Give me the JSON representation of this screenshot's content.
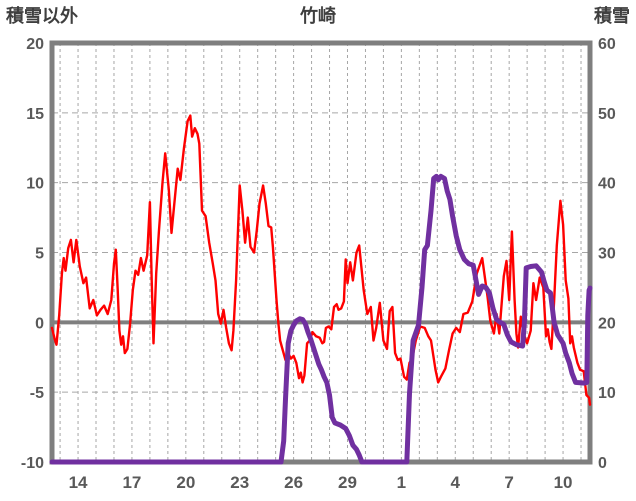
{
  "chart": {
    "title": "竹崎",
    "left_axis_title": "積雪以外",
    "right_axis_title": "積雪"
  },
  "chart_data": {
    "type": "line",
    "title": "竹崎",
    "grid": true,
    "legend": "none",
    "left_axis": {
      "label": "積雪以外",
      "ticks": [
        20,
        15,
        10,
        5,
        0,
        -5,
        -10
      ],
      "range": [
        -10,
        20
      ]
    },
    "right_axis": {
      "label": "積雪",
      "ticks": [
        60,
        50,
        40,
        30,
        20,
        10,
        0
      ],
      "range": [
        0,
        60
      ]
    },
    "x_axis": {
      "note": "day index: 14-31 = Dec 14-31, 32-41 = Jan 1-10",
      "range_days": [
        12.55,
        42.5
      ],
      "tick_days": [
        14,
        17,
        20,
        23,
        26,
        29,
        32,
        35,
        38,
        41
      ],
      "tick_labels": [
        "14",
        "17",
        "20",
        "23",
        "26",
        "29",
        "1",
        "4",
        "7",
        "10"
      ],
      "day_gridlines": true
    },
    "colors": {
      "temperature": "#FF0000",
      "snow": "#7030A0",
      "axis_frame": "#7f7f7f",
      "zero_line": "#7f7f7f",
      "grid": "#a6a6a6"
    },
    "series": [
      {
        "name": "temperature-non-snow",
        "axis": "left",
        "color": "#FF0000",
        "width": 2.4,
        "points": [
          [
            12.55,
            -0.4
          ],
          [
            12.7,
            -1.2
          ],
          [
            12.8,
            -1.6
          ],
          [
            12.95,
            0.5
          ],
          [
            13.1,
            3.5
          ],
          [
            13.2,
            4.6
          ],
          [
            13.3,
            3.7
          ],
          [
            13.45,
            5.3
          ],
          [
            13.6,
            5.9
          ],
          [
            13.75,
            4.3
          ],
          [
            13.9,
            5.9
          ],
          [
            14.1,
            4.0
          ],
          [
            14.3,
            2.8
          ],
          [
            14.45,
            3.2
          ],
          [
            14.65,
            1.0
          ],
          [
            14.85,
            1.6
          ],
          [
            15.05,
            0.5
          ],
          [
            15.25,
            0.9
          ],
          [
            15.45,
            1.2
          ],
          [
            15.65,
            0.6
          ],
          [
            15.85,
            1.6
          ],
          [
            16.0,
            4.2
          ],
          [
            16.1,
            5.2
          ],
          [
            16.2,
            2.5
          ],
          [
            16.3,
            -0.6
          ],
          [
            16.4,
            -1.6
          ],
          [
            16.5,
            -1.0
          ],
          [
            16.6,
            -2.2
          ],
          [
            16.75,
            -1.9
          ],
          [
            16.9,
            -0.1
          ],
          [
            17.05,
            2.3
          ],
          [
            17.2,
            3.7
          ],
          [
            17.35,
            3.4
          ],
          [
            17.5,
            4.6
          ],
          [
            17.65,
            3.7
          ],
          [
            17.85,
            4.8
          ],
          [
            18.0,
            8.6
          ],
          [
            18.1,
            3.0
          ],
          [
            18.2,
            -1.5
          ],
          [
            18.35,
            3.5
          ],
          [
            18.5,
            6.5
          ],
          [
            18.7,
            10.0
          ],
          [
            18.85,
            12.1
          ],
          [
            19.05,
            9.5
          ],
          [
            19.2,
            6.4
          ],
          [
            19.4,
            9.0
          ],
          [
            19.55,
            11.0
          ],
          [
            19.7,
            10.2
          ],
          [
            19.9,
            12.5
          ],
          [
            20.1,
            14.4
          ],
          [
            20.25,
            14.8
          ],
          [
            20.35,
            13.3
          ],
          [
            20.5,
            13.9
          ],
          [
            20.65,
            13.5
          ],
          [
            20.75,
            12.8
          ],
          [
            20.9,
            8.0
          ],
          [
            21.1,
            7.6
          ],
          [
            21.3,
            5.7
          ],
          [
            21.5,
            4.2
          ],
          [
            21.65,
            3.0
          ],
          [
            21.8,
            0.6
          ],
          [
            21.95,
            -0.1
          ],
          [
            22.1,
            0.9
          ],
          [
            22.25,
            -0.4
          ],
          [
            22.4,
            -1.5
          ],
          [
            22.55,
            -2.0
          ],
          [
            22.65,
            -0.6
          ],
          [
            22.8,
            3.0
          ],
          [
            23.0,
            9.8
          ],
          [
            23.15,
            8.0
          ],
          [
            23.3,
            5.7
          ],
          [
            23.45,
            7.5
          ],
          [
            23.6,
            5.4
          ],
          [
            23.8,
            5.0
          ],
          [
            23.95,
            6.6
          ],
          [
            24.1,
            8.5
          ],
          [
            24.3,
            9.8
          ],
          [
            24.45,
            8.5
          ],
          [
            24.6,
            6.9
          ],
          [
            24.75,
            6.8
          ],
          [
            24.85,
            5.4
          ],
          [
            24.95,
            3.5
          ],
          [
            25.05,
            1.6
          ],
          [
            25.15,
            0.0
          ],
          [
            25.25,
            -1.3
          ],
          [
            25.4,
            -2.0
          ],
          [
            25.55,
            -2.7
          ],
          [
            25.7,
            -2.2
          ],
          [
            25.85,
            -2.6
          ],
          [
            26.0,
            -2.4
          ],
          [
            26.15,
            -2.9
          ],
          [
            26.3,
            -4.0
          ],
          [
            26.4,
            -3.6
          ],
          [
            26.5,
            -4.3
          ],
          [
            26.6,
            -3.8
          ],
          [
            26.75,
            -1.5
          ],
          [
            26.9,
            -1.3
          ],
          [
            27.05,
            -0.7
          ],
          [
            27.25,
            -1.0
          ],
          [
            27.45,
            -1.1
          ],
          [
            27.6,
            -1.5
          ],
          [
            27.7,
            -1.4
          ],
          [
            27.8,
            -0.4
          ],
          [
            27.95,
            -0.3
          ],
          [
            28.1,
            -0.5
          ],
          [
            28.25,
            1.1
          ],
          [
            28.4,
            1.3
          ],
          [
            28.5,
            0.9
          ],
          [
            28.65,
            1.0
          ],
          [
            28.8,
            1.5
          ],
          [
            28.9,
            4.5
          ],
          [
            29.0,
            2.8
          ],
          [
            29.15,
            4.3
          ],
          [
            29.3,
            3.0
          ],
          [
            29.5,
            5.0
          ],
          [
            29.65,
            5.5
          ],
          [
            29.9,
            2.3
          ],
          [
            30.1,
            0.6
          ],
          [
            30.3,
            1.1
          ],
          [
            30.45,
            -1.3
          ],
          [
            30.6,
            -0.4
          ],
          [
            30.8,
            1.4
          ],
          [
            31.0,
            -1.3
          ],
          [
            31.2,
            -1.9
          ],
          [
            31.35,
            0.8
          ],
          [
            31.5,
            1.1
          ],
          [
            31.65,
            -2.2
          ],
          [
            31.8,
            -2.7
          ],
          [
            31.95,
            -2.6
          ],
          [
            32.15,
            -3.9
          ],
          [
            32.3,
            -4.1
          ],
          [
            32.45,
            -2.9
          ],
          [
            32.6,
            -2.6
          ],
          [
            32.8,
            -1.3
          ],
          [
            33.05,
            -0.3
          ],
          [
            33.3,
            -0.4
          ],
          [
            33.5,
            -1.0
          ],
          [
            33.65,
            -1.3
          ],
          [
            33.9,
            -3.4
          ],
          [
            34.05,
            -4.3
          ],
          [
            34.2,
            -3.9
          ],
          [
            34.45,
            -3.3
          ],
          [
            34.65,
            -2.0
          ],
          [
            34.85,
            -0.8
          ],
          [
            35.05,
            -0.4
          ],
          [
            35.25,
            -0.7
          ],
          [
            35.45,
            0.6
          ],
          [
            35.7,
            0.7
          ],
          [
            35.95,
            1.5
          ],
          [
            36.2,
            3.5
          ],
          [
            36.5,
            4.6
          ],
          [
            36.8,
            1.8
          ],
          [
            36.95,
            0.1
          ],
          [
            37.15,
            -0.8
          ],
          [
            37.3,
            0.6
          ],
          [
            37.45,
            -0.8
          ],
          [
            37.7,
            3.3
          ],
          [
            37.85,
            4.4
          ],
          [
            38.0,
            1.6
          ],
          [
            38.15,
            6.5
          ],
          [
            38.3,
            1.6
          ],
          [
            38.4,
            -0.8
          ],
          [
            38.5,
            -1.8
          ],
          [
            38.65,
            0.4
          ],
          [
            38.8,
            -0.8
          ],
          [
            39.0,
            -1.5
          ],
          [
            39.2,
            -0.6
          ],
          [
            39.35,
            2.8
          ],
          [
            39.5,
            1.6
          ],
          [
            39.7,
            3.2
          ],
          [
            39.9,
            2.5
          ],
          [
            40.05,
            -1.0
          ],
          [
            40.15,
            -0.5
          ],
          [
            40.25,
            -1.4
          ],
          [
            40.35,
            -1.9
          ],
          [
            40.5,
            1.5
          ],
          [
            40.65,
            5.5
          ],
          [
            40.85,
            8.7
          ],
          [
            41.0,
            7.0
          ],
          [
            41.15,
            3.0
          ],
          [
            41.3,
            1.7
          ],
          [
            41.4,
            -1.5
          ],
          [
            41.5,
            -1.0
          ],
          [
            41.6,
            -1.8
          ],
          [
            41.8,
            -2.9
          ],
          [
            41.95,
            -3.4
          ],
          [
            42.15,
            -3.5
          ],
          [
            42.3,
            -5.2
          ],
          [
            42.45,
            -5.4
          ],
          [
            42.5,
            -5.9
          ]
        ]
      },
      {
        "name": "snow-depth",
        "axis": "right",
        "color": "#7030A0",
        "width": 5,
        "points": [
          [
            12.55,
            0
          ],
          [
            25.3,
            0
          ],
          [
            25.45,
            3
          ],
          [
            25.55,
            9
          ],
          [
            25.7,
            17
          ],
          [
            25.85,
            18.8
          ],
          [
            26.0,
            19.6
          ],
          [
            26.15,
            20.2
          ],
          [
            26.35,
            20.5
          ],
          [
            26.5,
            20.4
          ],
          [
            26.65,
            19.8
          ],
          [
            26.8,
            18.6
          ],
          [
            26.95,
            17.6
          ],
          [
            27.1,
            16.4
          ],
          [
            27.25,
            15.2
          ],
          [
            27.4,
            14
          ],
          [
            27.55,
            13.2
          ],
          [
            27.7,
            12.2
          ],
          [
            27.85,
            11.4
          ],
          [
            28.0,
            9.6
          ],
          [
            28.15,
            6.4
          ],
          [
            28.3,
            5.6
          ],
          [
            28.6,
            5.3
          ],
          [
            28.9,
            4.8
          ],
          [
            29.1,
            3.8
          ],
          [
            29.3,
            2.4
          ],
          [
            29.5,
            1.8
          ],
          [
            29.65,
            1
          ],
          [
            29.8,
            0
          ],
          [
            32.3,
            0
          ],
          [
            32.45,
            9.8
          ],
          [
            32.65,
            17.4
          ],
          [
            32.95,
            19.6
          ],
          [
            33.15,
            25
          ],
          [
            33.3,
            30.4
          ],
          [
            33.45,
            31
          ],
          [
            33.65,
            36
          ],
          [
            33.8,
            40.6
          ],
          [
            33.95,
            40.9
          ],
          [
            34.05,
            40.4
          ],
          [
            34.2,
            40.9
          ],
          [
            34.4,
            40.6
          ],
          [
            34.55,
            38.8
          ],
          [
            34.7,
            37.6
          ],
          [
            34.85,
            35.2
          ],
          [
            35.05,
            32.4
          ],
          [
            35.25,
            30.4
          ],
          [
            35.5,
            29
          ],
          [
            35.75,
            28.4
          ],
          [
            36.0,
            28.2
          ],
          [
            36.3,
            24
          ],
          [
            36.5,
            25.2
          ],
          [
            36.7,
            25
          ],
          [
            36.9,
            24.2
          ],
          [
            37.1,
            22
          ],
          [
            37.3,
            20.4
          ],
          [
            37.5,
            20
          ],
          [
            37.7,
            19.7
          ],
          [
            37.9,
            18.2
          ],
          [
            38.1,
            17.2
          ],
          [
            38.4,
            16.8
          ],
          [
            38.75,
            16.6
          ],
          [
            38.85,
            20
          ],
          [
            38.95,
            27.8
          ],
          [
            39.2,
            28
          ],
          [
            39.5,
            28.1
          ],
          [
            39.8,
            27.2
          ],
          [
            39.95,
            25.8
          ],
          [
            40.1,
            24.6
          ],
          [
            40.3,
            24.2
          ],
          [
            40.5,
            20
          ],
          [
            40.7,
            18.2
          ],
          [
            41.0,
            17
          ],
          [
            41.15,
            15.6
          ],
          [
            41.35,
            14.2
          ],
          [
            41.5,
            12.7
          ],
          [
            41.7,
            11.4
          ],
          [
            42.2,
            11.3
          ],
          [
            42.32,
            11.4
          ],
          [
            42.38,
            21
          ],
          [
            42.45,
            24.6
          ],
          [
            42.5,
            24.9
          ]
        ]
      }
    ]
  }
}
